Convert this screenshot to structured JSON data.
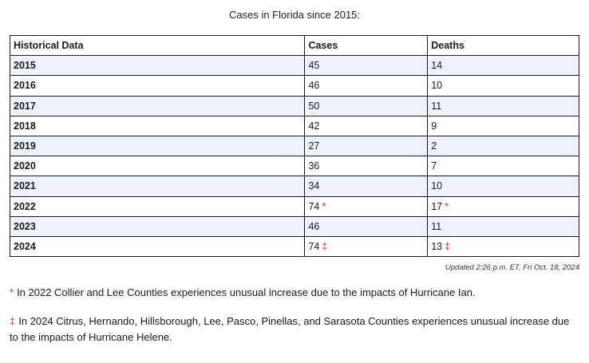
{
  "caption": "Cases in Florida since 2015:",
  "table": {
    "headers": [
      "Historical Data",
      "Cases",
      "Deaths"
    ],
    "rows": [
      {
        "year": "2015",
        "cases": "45",
        "cases_mark": "",
        "deaths": "14",
        "deaths_mark": ""
      },
      {
        "year": "2016",
        "cases": "46",
        "cases_mark": "",
        "deaths": "10",
        "deaths_mark": ""
      },
      {
        "year": "2017",
        "cases": "50",
        "cases_mark": "",
        "deaths": "11",
        "deaths_mark": ""
      },
      {
        "year": "2018",
        "cases": "42",
        "cases_mark": "",
        "deaths": "9",
        "deaths_mark": ""
      },
      {
        "year": "2019",
        "cases": "27",
        "cases_mark": "",
        "deaths": "2",
        "deaths_mark": ""
      },
      {
        "year": "2020",
        "cases": "36",
        "cases_mark": "",
        "deaths": "7",
        "deaths_mark": ""
      },
      {
        "year": "2021",
        "cases": "34",
        "cases_mark": "",
        "deaths": "10",
        "deaths_mark": ""
      },
      {
        "year": "2022",
        "cases": "74",
        "cases_mark": "*",
        "deaths": "17",
        "deaths_mark": "*"
      },
      {
        "year": "2023",
        "cases": "46",
        "cases_mark": "",
        "deaths": "11",
        "deaths_mark": ""
      },
      {
        "year": "2024",
        "cases": "74",
        "cases_mark": "‡",
        "deaths": "13",
        "deaths_mark": "‡"
      }
    ]
  },
  "updated": "Updated 2:26 p.m. ET, Fri Oct. 18, 2024",
  "notes": [
    {
      "symbol": "*",
      "text": "In 2022 Collier and Lee Counties experiences unusual increase due to the impacts of Hurricane Ian."
    },
    {
      "symbol": "‡",
      "text": "In 2024 Citrus, Hernando, Hillsborough, Lee, Pasco, Pinellas, and Sarasota Counties experiences unusual increase due to the impacts of Hurricane Helene."
    }
  ],
  "colors": {
    "accent_red": "#d9281f",
    "stripe": "#eef3fb"
  }
}
